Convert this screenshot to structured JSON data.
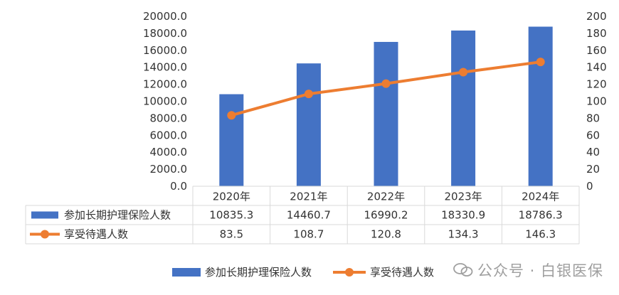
{
  "chart_data": {
    "type": "bar",
    "categories": [
      "2020年",
      "2021年",
      "2022年",
      "2023年",
      "2024年"
    ],
    "series": [
      {
        "name": "参加长期护理保险人数",
        "type": "bar",
        "axis": "left",
        "values": [
          10835.3,
          14460.7,
          16990.2,
          18330.9,
          18786.3
        ],
        "value_labels": [
          "10835.3",
          "14460.7",
          "16990.2",
          "18330.9",
          "18786.3"
        ],
        "color": "#4472c4"
      },
      {
        "name": "享受待遇人数",
        "type": "line",
        "axis": "right",
        "values": [
          83.5,
          108.7,
          120.8,
          134.3,
          146.3
        ],
        "value_labels": [
          "83.5",
          "108.7",
          "120.8",
          "134.3",
          "146.3"
        ],
        "color": "#ed7d31"
      }
    ],
    "y_left": {
      "range": [
        0,
        20000
      ],
      "ticks": [
        "0.0",
        "2000.0",
        "4000.0",
        "6000.0",
        "8000.0",
        "10000.0",
        "12000.0",
        "14000.0",
        "16000.0",
        "18000.0",
        "20000.0"
      ]
    },
    "y_right": {
      "range": [
        0,
        200
      ],
      "ticks": [
        "0",
        "20",
        "40",
        "60",
        "80",
        "100",
        "120",
        "140",
        "160",
        "180",
        "200"
      ]
    },
    "title": "",
    "xlabel": "",
    "ylabel": "",
    "grid": false,
    "data_table": true,
    "legend": "bottom"
  },
  "watermark": {
    "text": "公众号 · 白银医保",
    "icon": "wechat-icon"
  },
  "colors": {
    "axis": "#d9d9d9",
    "text": "#333333"
  }
}
